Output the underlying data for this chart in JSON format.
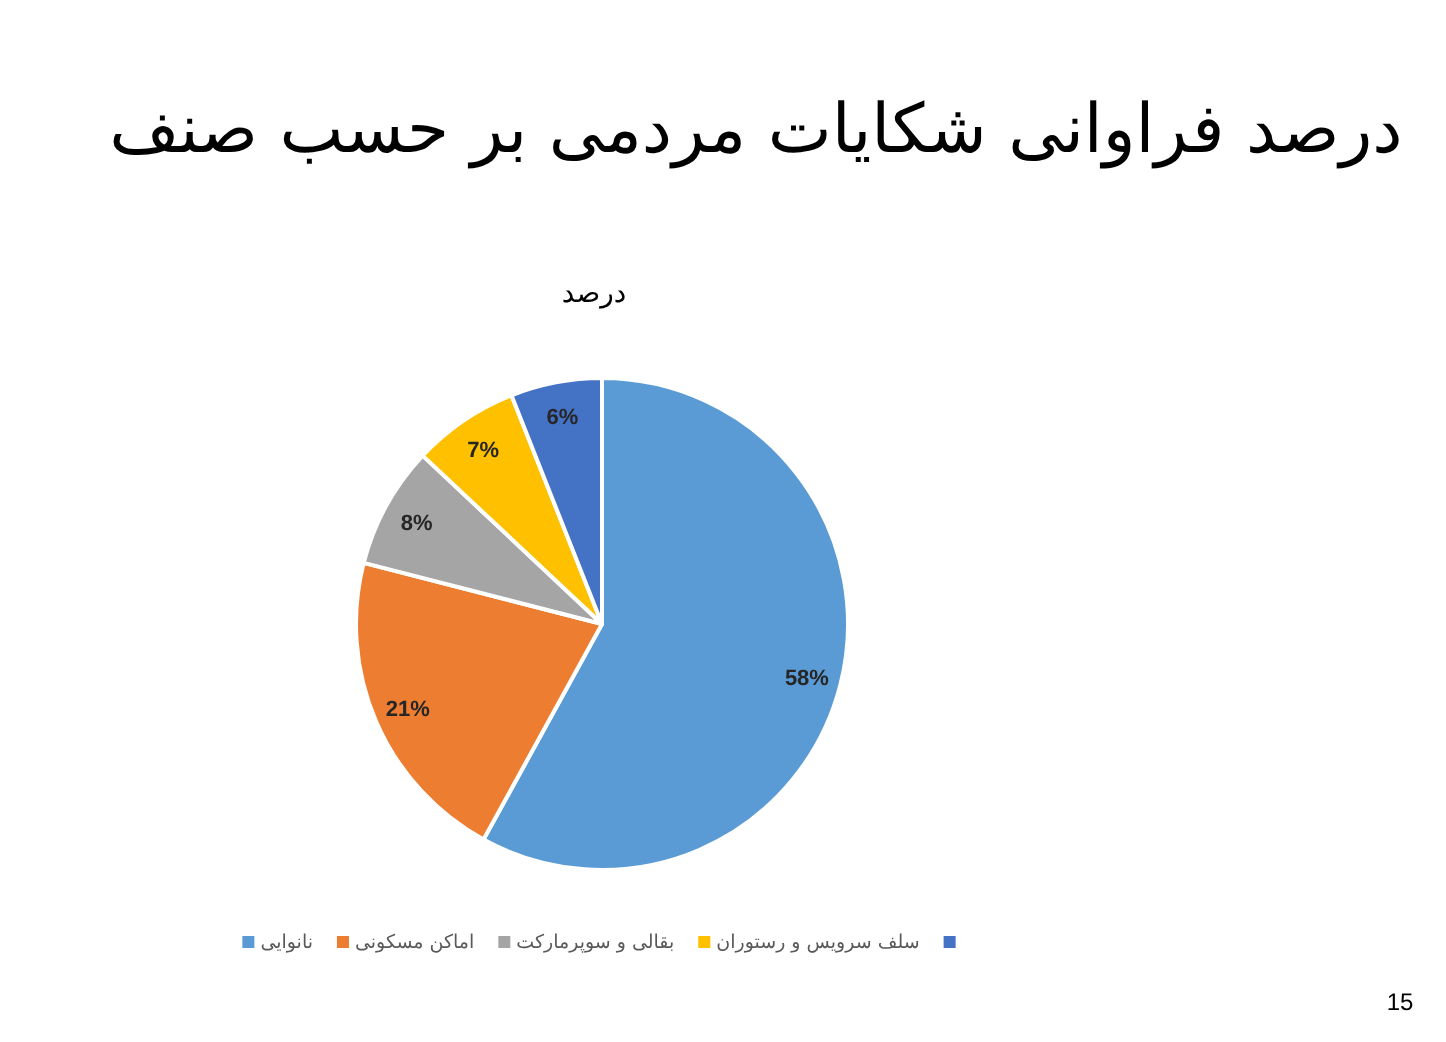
{
  "chart_data": {
    "type": "pie",
    "title": "درصد فراوانی شکایات مردمی بر حسب صنف",
    "subtitle": "درصد",
    "categories": [
      "نانوایی",
      "اماکن مسکونی",
      "بقالی و سوپرمارکت",
      "سلف سرویس و رستوران",
      null
    ],
    "values": [
      58,
      21,
      8,
      7,
      6
    ],
    "colors": [
      "#5b9bd5",
      "#ed7d31",
      "#a5a5a5",
      "#ffc000",
      "#4472c4"
    ],
    "value_labels": [
      "58%",
      "21%",
      "8%",
      "7%",
      "6%"
    ],
    "legend": "bottom",
    "annotations": [
      "15"
    ]
  }
}
